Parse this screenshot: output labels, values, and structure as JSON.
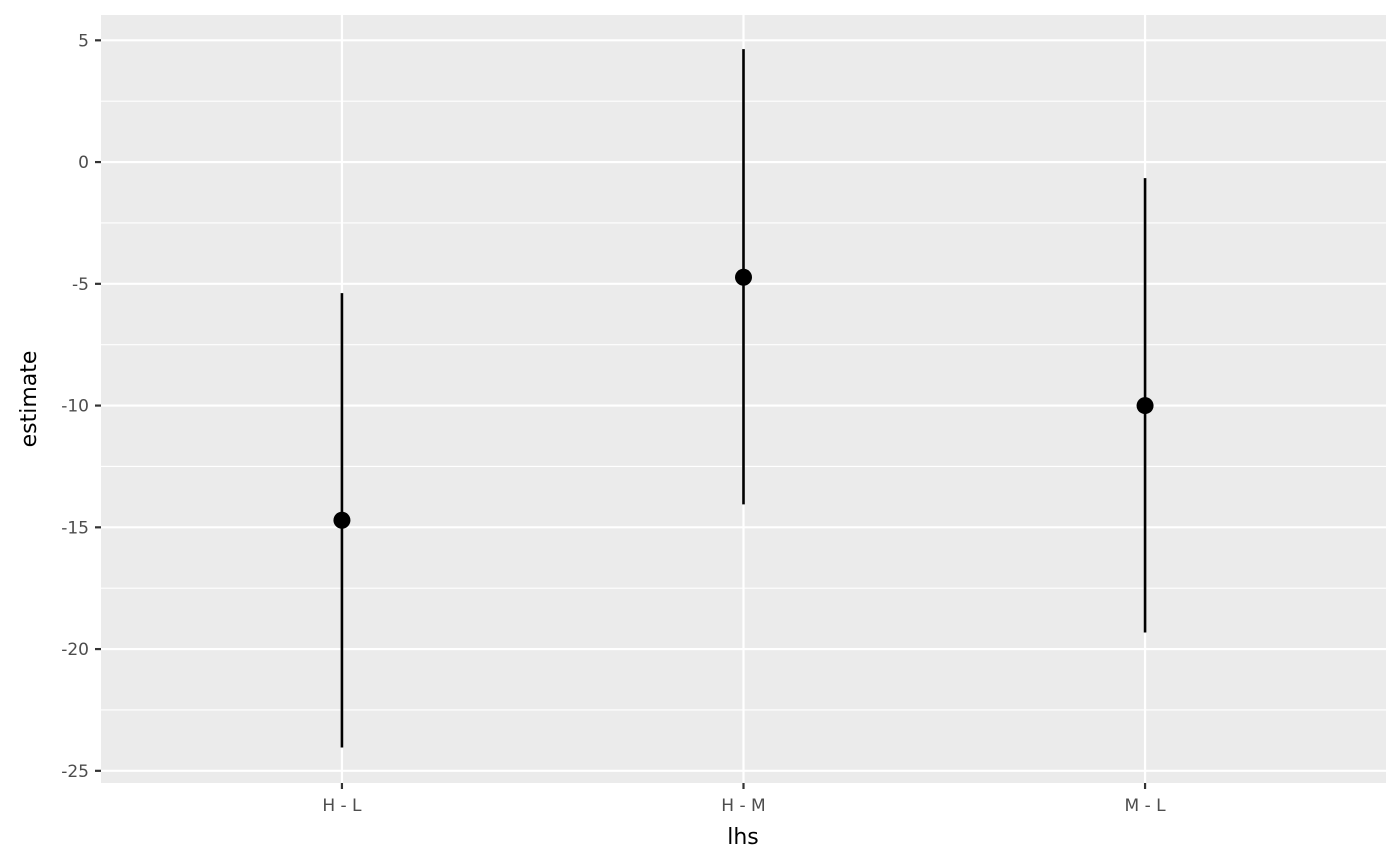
{
  "chart_data": {
    "type": "pointrange",
    "title": "",
    "xlabel": "lhs",
    "ylabel": "estimate",
    "categories": [
      "H - L",
      "H - M",
      "M - L"
    ],
    "estimate": [
      -14.71,
      -4.73,
      -10.0
    ],
    "conf_low": [
      -24.04,
      -14.06,
      -19.32
    ],
    "conf_high": [
      -5.38,
      4.64,
      -0.66
    ],
    "ylim": [
      -25.5,
      6.04
    ],
    "yticks": [
      5,
      0,
      -5,
      -10,
      -15,
      -20,
      -25
    ],
    "ytick_labels": [
      "5",
      "0",
      "-5",
      "-10",
      "-15",
      "-20",
      "-25"
    ],
    "grid": true,
    "colors": {
      "panel": "#ebebeb",
      "grid": "#ffffff",
      "mark": "#000000",
      "tick_text": "#4d4d4d"
    }
  }
}
